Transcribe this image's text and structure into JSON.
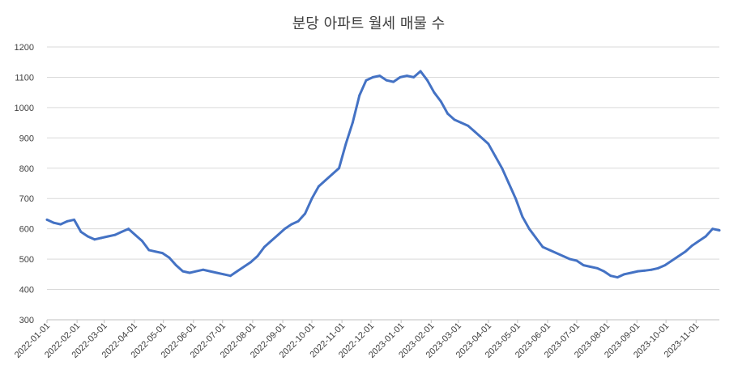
{
  "chart_data": {
    "type": "line",
    "title": "분당 아파트 월세 매물 수",
    "xlabel": "",
    "ylabel": "",
    "ylim": [
      300,
      1200
    ],
    "yticks": [
      300,
      400,
      500,
      600,
      700,
      800,
      900,
      1000,
      1100,
      1200
    ],
    "grid": true,
    "legend": "none",
    "line_color": "#4472c4",
    "x_tick_labels": [
      "2022-01-01",
      "2022-02-01",
      "2022-03-01",
      "2022-04-01",
      "2022-05-01",
      "2022-06-01",
      "2022-07-01",
      "2022-08-01",
      "2022-09-01",
      "2022-10-01",
      "2022-11-01",
      "2022-12-01",
      "2023-01-01",
      "2023-02-01",
      "2023-03-01",
      "2023-04-01",
      "2023-05-01",
      "2023-06-01",
      "2023-07-01",
      "2023-08-01",
      "2023-09-01",
      "2023-10-01",
      "2023-11-01"
    ],
    "series": [
      {
        "name": "",
        "x": [
          "2022-01-01",
          "2022-01-08",
          "2022-01-15",
          "2022-01-22",
          "2022-01-29",
          "2022-02-05",
          "2022-02-12",
          "2022-02-19",
          "2022-02-26",
          "2022-03-05",
          "2022-03-12",
          "2022-03-19",
          "2022-03-26",
          "2022-04-02",
          "2022-04-09",
          "2022-04-16",
          "2022-04-23",
          "2022-04-30",
          "2022-05-07",
          "2022-05-14",
          "2022-05-21",
          "2022-05-28",
          "2022-06-04",
          "2022-06-11",
          "2022-06-18",
          "2022-06-25",
          "2022-07-02",
          "2022-07-09",
          "2022-07-16",
          "2022-07-23",
          "2022-07-30",
          "2022-08-06",
          "2022-08-13",
          "2022-08-20",
          "2022-08-27",
          "2022-09-03",
          "2022-09-10",
          "2022-09-17",
          "2022-09-24",
          "2022-10-01",
          "2022-10-08",
          "2022-10-15",
          "2022-10-22",
          "2022-10-29",
          "2022-11-05",
          "2022-11-12",
          "2022-11-19",
          "2022-11-26",
          "2022-12-03",
          "2022-12-10",
          "2022-12-17",
          "2022-12-24",
          "2022-12-31",
          "2023-01-07",
          "2023-01-14",
          "2023-01-21",
          "2023-01-28",
          "2023-02-04",
          "2023-02-11",
          "2023-02-18",
          "2023-02-25",
          "2023-03-04",
          "2023-03-11",
          "2023-03-18",
          "2023-03-25",
          "2023-04-01",
          "2023-04-08",
          "2023-04-15",
          "2023-04-22",
          "2023-04-29",
          "2023-05-06",
          "2023-05-13",
          "2023-05-20",
          "2023-05-27",
          "2023-06-03",
          "2023-06-10",
          "2023-06-17",
          "2023-06-24",
          "2023-07-01",
          "2023-07-08",
          "2023-07-15",
          "2023-07-22",
          "2023-07-29",
          "2023-08-05",
          "2023-08-12",
          "2023-08-19",
          "2023-08-26",
          "2023-09-02",
          "2023-09-09",
          "2023-09-16",
          "2023-09-23",
          "2023-09-30",
          "2023-10-07",
          "2023-10-14",
          "2023-10-21",
          "2023-10-28",
          "2023-11-04",
          "2023-11-11",
          "2023-11-18",
          "2023-11-25"
        ],
        "values": [
          630,
          620,
          615,
          625,
          630,
          590,
          575,
          565,
          570,
          575,
          580,
          590,
          600,
          580,
          560,
          530,
          525,
          520,
          505,
          480,
          460,
          455,
          460,
          465,
          460,
          455,
          450,
          445,
          460,
          475,
          490,
          510,
          540,
          560,
          580,
          600,
          615,
          625,
          650,
          700,
          740,
          760,
          780,
          800,
          880,
          950,
          1040,
          1090,
          1100,
          1105,
          1090,
          1085,
          1100,
          1105,
          1100,
          1120,
          1090,
          1050,
          1020,
          980,
          960,
          950,
          940,
          920,
          900,
          880,
          840,
          800,
          750,
          700,
          640,
          600,
          570,
          540,
          530,
          520,
          510,
          500,
          495,
          480,
          475,
          470,
          460,
          445,
          440,
          450,
          455,
          460,
          462,
          465,
          470,
          480,
          495,
          510,
          525,
          545,
          560,
          575,
          600,
          595
        ]
      }
    ]
  }
}
